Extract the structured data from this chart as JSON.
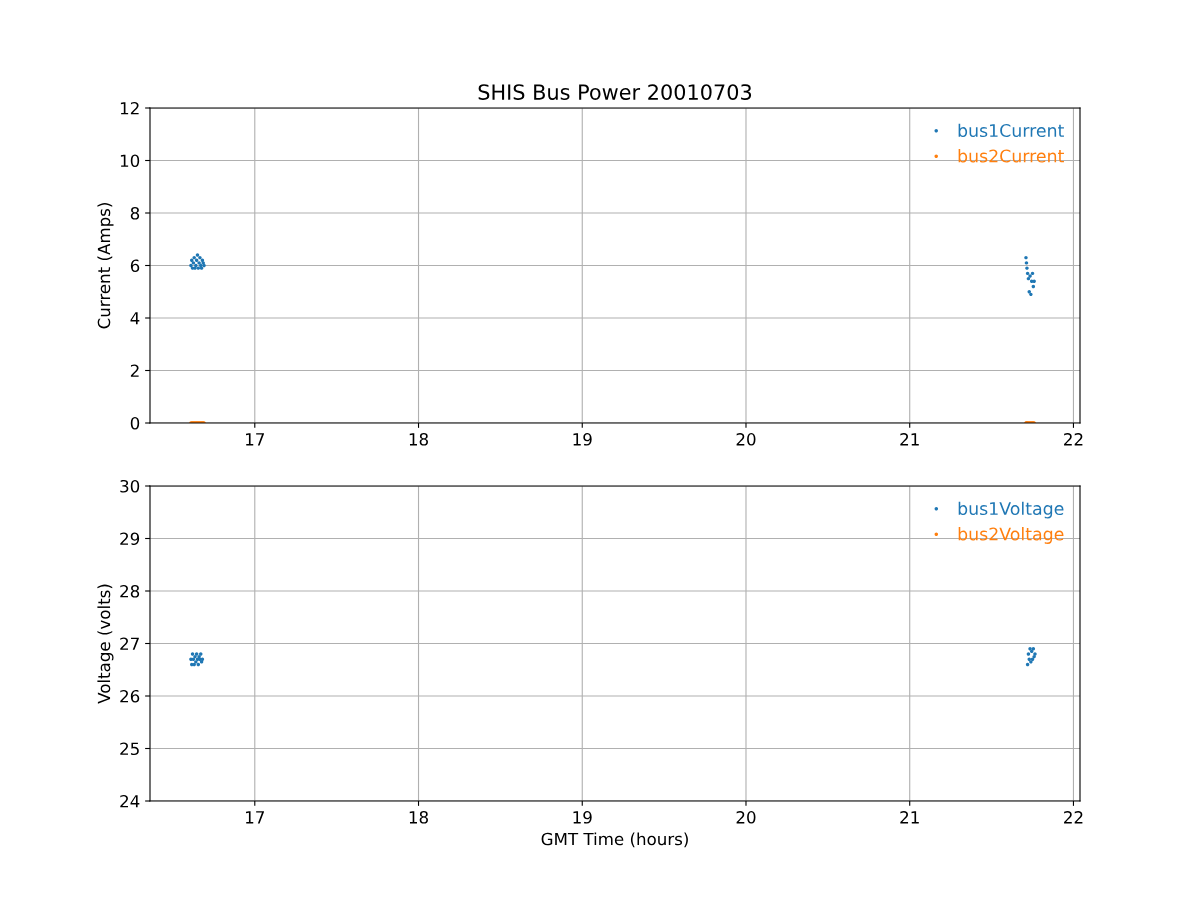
{
  "chart_data": [
    {
      "type": "scatter",
      "title": "SHIS Bus Power 20010703",
      "ylabel": "Current (Amps)",
      "xlim": [
        16.36,
        22.04
      ],
      "xticks": [
        17,
        18,
        19,
        20,
        21,
        22
      ],
      "ylim": [
        0,
        12
      ],
      "yticks": [
        0,
        2,
        4,
        6,
        8,
        10,
        12
      ],
      "grid": true,
      "legend": "top right",
      "marker": "circle",
      "x": [
        16.61,
        16.615,
        16.62,
        16.625,
        16.63,
        16.635,
        16.64,
        16.645,
        16.65,
        16.655,
        16.66,
        16.665,
        16.67,
        16.675,
        16.68,
        16.685,
        16.69,
        21.71,
        21.713,
        21.716,
        21.72,
        21.725,
        21.73,
        21.735,
        21.74,
        21.745,
        21.75,
        21.755,
        21.76
      ],
      "series": [
        {
          "name": "bus1Current",
          "color": "#1f77b4",
          "values": [
            6.0,
            6.2,
            5.9,
            6.1,
            6.3,
            5.9,
            6.0,
            6.2,
            6.4,
            5.9,
            6.1,
            6.3,
            6.0,
            5.9,
            6.2,
            6.1,
            6.0,
            6.3,
            6.1,
            5.9,
            5.7,
            5.5,
            5.0,
            5.6,
            4.9,
            5.4,
            5.7,
            5.2,
            5.4
          ]
        },
        {
          "name": "bus2Current",
          "color": "#ff7f0e",
          "values": [
            0,
            0,
            0,
            0,
            0,
            0,
            0,
            0,
            0,
            0,
            0,
            0,
            0,
            0,
            0,
            0,
            0,
            0,
            0,
            0,
            0,
            0,
            0,
            0,
            0,
            0,
            0,
            0,
            0
          ]
        }
      ]
    },
    {
      "type": "scatter",
      "xlabel": "GMT Time (hours)",
      "ylabel": "Voltage (volts)",
      "xlim": [
        16.36,
        22.04
      ],
      "xticks": [
        17,
        18,
        19,
        20,
        21,
        22
      ],
      "ylim": [
        24,
        30
      ],
      "yticks": [
        24,
        25,
        26,
        27,
        28,
        29,
        30
      ],
      "grid": true,
      "legend": "top right",
      "marker": "circle",
      "x": [
        16.61,
        16.615,
        16.62,
        16.625,
        16.63,
        16.635,
        16.64,
        16.645,
        16.65,
        16.655,
        16.66,
        16.665,
        16.67,
        16.675,
        16.68,
        21.72,
        21.725,
        21.73,
        21.735,
        21.74,
        21.745,
        21.75,
        21.755,
        21.76,
        21.765
      ],
      "series": [
        {
          "name": "bus1Voltage",
          "color": "#1f77b4",
          "values": [
            26.7,
            26.6,
            26.8,
            26.7,
            26.6,
            26.75,
            26.65,
            26.8,
            26.7,
            26.6,
            26.75,
            26.7,
            26.8,
            26.65,
            26.7,
            26.6,
            26.8,
            26.7,
            26.9,
            26.65,
            26.85,
            26.7,
            26.9,
            26.75,
            26.8
          ]
        },
        {
          "name": "bus2Voltage",
          "color": "#ff7f0e",
          "values": [
            null,
            null,
            null,
            null,
            null,
            null,
            null,
            null,
            null,
            null,
            null,
            null,
            null,
            null,
            null,
            null,
            null,
            null,
            null,
            null,
            null,
            null,
            null,
            null,
            null
          ]
        }
      ]
    }
  ]
}
